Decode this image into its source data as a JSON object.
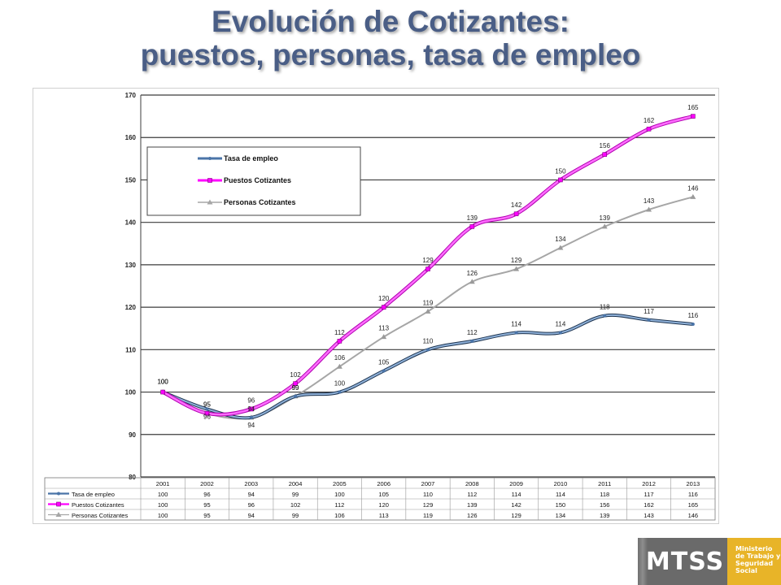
{
  "title": {
    "line1": "Evolución de Cotizantes:",
    "line2": "puestos, personas, tasa de empleo"
  },
  "logo": {
    "text": "MTSS",
    "lines": [
      "Ministerio",
      "de Trabajo y",
      "Seguridad",
      "Social"
    ]
  },
  "colors": {
    "tasa": "#4a74a8",
    "puestos": "#ff00ff",
    "personas": "#a6a6a6",
    "title": "#4a5e86",
    "logo_gray": "#6a6a6a",
    "logo_gold": "#e8b428"
  },
  "chart_data": {
    "type": "line",
    "categories": [
      "2001",
      "2002",
      "2003",
      "2004",
      "2005",
      "2006",
      "2007",
      "2008",
      "2009",
      "2010",
      "2011",
      "2012",
      "2013"
    ],
    "ylim": [
      80,
      170
    ],
    "yticks": [
      80,
      90,
      100,
      110,
      120,
      130,
      140,
      150,
      160,
      170
    ],
    "grid": true,
    "legend_position": "top-left",
    "series": [
      {
        "name": "Tasa de empleo",
        "color": "#4a74a8",
        "marker": "circle",
        "values": [
          100,
          96,
          94,
          99,
          100,
          105,
          110,
          112,
          114,
          114,
          118,
          117,
          116
        ]
      },
      {
        "name": "Puestos Cotizantes",
        "color": "#ff00ff",
        "marker": "square",
        "values": [
          100,
          95,
          96,
          102,
          112,
          120,
          129,
          139,
          142,
          150,
          156,
          162,
          165
        ]
      },
      {
        "name": "Personas Cotizantes",
        "color": "#a6a6a6",
        "marker": "triangle",
        "values": [
          100,
          95,
          94,
          99,
          106,
          113,
          119,
          126,
          129,
          134,
          139,
          143,
          146
        ]
      }
    ],
    "table": true
  }
}
